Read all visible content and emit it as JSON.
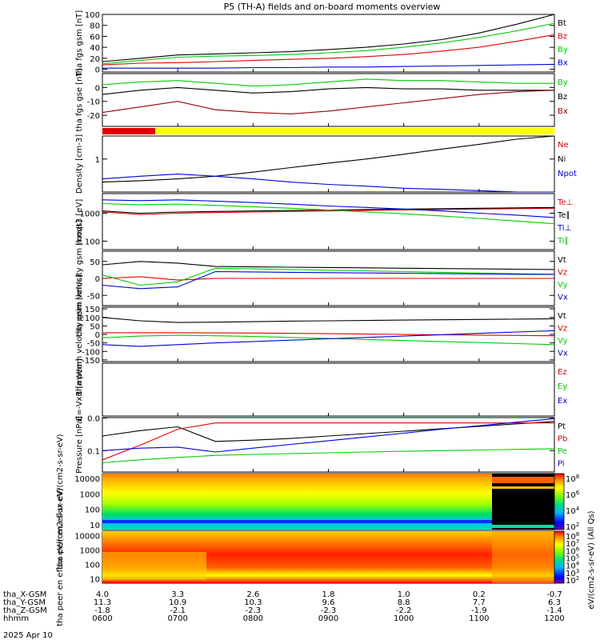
{
  "title": "P5 (TH-A) fields and on-board moments overview",
  "date": "2025 Apr 10",
  "colors": {
    "black": "#000000",
    "red": "#e00000",
    "green": "#00cc00",
    "blue": "#0000dd",
    "yellow": "#ffff00",
    "darkred": "#990000"
  },
  "xaxis": {
    "rows": [
      {
        "label": "tha_X-GSM",
        "values": [
          "4.0",
          "3.3",
          "2.6",
          "1.8",
          "1.0",
          "0.2",
          "-0.7"
        ]
      },
      {
        "label": "tha_Y-GSM",
        "values": [
          "11.3",
          "10.9",
          "10.3",
          "9.6",
          "8.8",
          "7.7",
          "6.3"
        ]
      },
      {
        "label": "tha_Z-GSM",
        "values": [
          "-1.8",
          "-2.1",
          "-2.3",
          "-2.3",
          "-2.2",
          "-1.9",
          "-1.4"
        ]
      },
      {
        "label": "hhmm",
        "values": [
          "0600",
          "0700",
          "0800",
          "0900",
          "1000",
          "1100",
          "1200"
        ]
      }
    ]
  },
  "chart_data": [
    {
      "type": "line",
      "ylabel": "tha fgs gsm [nT]",
      "ylim": [
        -5,
        100
      ],
      "yticks": [
        "100",
        "80",
        "60",
        "40",
        "20",
        "0"
      ],
      "x": [
        6.0,
        6.5,
        7.0,
        7.5,
        8.0,
        8.5,
        9.0,
        9.5,
        10.0,
        10.5,
        11.0,
        11.5,
        12.0
      ],
      "series": [
        {
          "name": "Bt",
          "color": "black",
          "values": [
            14,
            20,
            26,
            28,
            30,
            32,
            36,
            40,
            46,
            54,
            66,
            82,
            102
          ]
        },
        {
          "name": "Bz",
          "color": "red",
          "values": [
            8,
            11,
            12,
            14,
            16,
            18,
            20,
            23,
            27,
            33,
            40,
            51,
            63
          ]
        },
        {
          "name": "By",
          "color": "green",
          "values": [
            10,
            16,
            22,
            24,
            25,
            27,
            30,
            34,
            40,
            48,
            58,
            70,
            84
          ]
        },
        {
          "name": "Bx",
          "color": "blue",
          "values": [
            2,
            2,
            2,
            2,
            3,
            3,
            4,
            4,
            5,
            6,
            7,
            8,
            9
          ]
        }
      ]
    },
    {
      "type": "line",
      "ylabel": "tha fgs gse [nT]",
      "ylim": [
        -28,
        10
      ],
      "yticks": [
        "0",
        "-10",
        "-20"
      ],
      "x": [
        6.0,
        6.5,
        7.0,
        7.5,
        8.0,
        8.5,
        9.0,
        9.5,
        10.0,
        10.5,
        11.0,
        11.5,
        12.0
      ],
      "series": [
        {
          "name": "By",
          "color": "green",
          "values": [
            2,
            4,
            5,
            3,
            1,
            2,
            4,
            6,
            5,
            5,
            4,
            3,
            3
          ]
        },
        {
          "name": "Bz",
          "color": "black",
          "values": [
            -5,
            -2,
            0,
            -2,
            -4,
            -3,
            -1,
            0,
            -1,
            -1,
            -2,
            -2,
            -2
          ]
        },
        {
          "name": "Bx",
          "color": "darkred",
          "values": [
            -18,
            -14,
            -10,
            -16,
            -18,
            -19,
            -17,
            -14,
            -11,
            -8,
            -5,
            -3,
            -2
          ]
        }
      ]
    },
    {
      "type": "line",
      "ylabel": "Density [cm-3]",
      "ylim": [
        0.1,
        5
      ],
      "yticks": [
        "1"
      ],
      "x": [
        6.0,
        6.5,
        7.0,
        7.5,
        8.0,
        8.5,
        9.0,
        9.5,
        10.0,
        10.5,
        11.0,
        11.5,
        12.0
      ],
      "series": [
        {
          "name": "Ne",
          "color": "red",
          "values": [
            null,
            null,
            null,
            null,
            null,
            null,
            null,
            null,
            null,
            null,
            null,
            null,
            null
          ]
        },
        {
          "name": "Ni",
          "color": "black",
          "values": [
            0.2,
            0.22,
            0.25,
            0.3,
            0.4,
            0.55,
            0.75,
            1.0,
            1.4,
            2.0,
            2.8,
            4.0,
            5.0
          ]
        },
        {
          "name": "Npot",
          "color": "blue",
          "values": [
            0.25,
            0.3,
            0.35,
            0.3,
            0.25,
            0.2,
            0.17,
            0.15,
            0.13,
            0.12,
            0.11,
            0.1,
            0.1
          ]
        }
      ]
    },
    {
      "type": "line",
      "ylabel": "moqt3 [eV]",
      "ylim": [
        50,
        5000
      ],
      "yticks": [
        "1000",
        "100"
      ],
      "x": [
        6.0,
        6.5,
        7.0,
        7.5,
        8.0,
        8.5,
        9.0,
        9.5,
        10.0,
        10.5,
        11.0,
        11.5,
        12.0
      ],
      "series": [
        {
          "name": "Te⊥",
          "color": "red",
          "values": [
            1100,
            900,
            1000,
            1050,
            1100,
            1150,
            1200,
            1250,
            1300,
            1350,
            1400,
            1450,
            1500
          ]
        },
        {
          "name": "Te∥",
          "color": "black",
          "values": [
            1200,
            1000,
            1100,
            1150,
            1200,
            1250,
            1300,
            1350,
            1400,
            1450,
            1500,
            1550,
            1600
          ]
        },
        {
          "name": "Ti⊥",
          "color": "blue",
          "values": [
            3000,
            2800,
            3000,
            2700,
            2400,
            2100,
            1800,
            1600,
            1400,
            1200,
            1000,
            850,
            700
          ]
        },
        {
          "name": "Ti∥",
          "color": "green",
          "values": [
            2200,
            2000,
            2100,
            1900,
            1700,
            1500,
            1300,
            1100,
            950,
            800,
            650,
            520,
            420
          ]
        }
      ]
    },
    {
      "type": "line",
      "ylabel": "tha peim velocity gsm [km/s]",
      "ylim": [
        -80,
        80
      ],
      "yticks": [
        "50",
        "0",
        "-50"
      ],
      "x": [
        6.0,
        6.5,
        7.0,
        7.5,
        8.0,
        8.5,
        9.0,
        9.5,
        10.0,
        10.5,
        11.0,
        11.5,
        12.0
      ],
      "series": [
        {
          "name": "Vt",
          "color": "black",
          "values": [
            40,
            50,
            45,
            35,
            34,
            33,
            32,
            31,
            30,
            29,
            28,
            27,
            26
          ]
        },
        {
          "name": "Vz",
          "color": "red",
          "values": [
            0,
            5,
            -5,
            0,
            0,
            0,
            0,
            0,
            0,
            0,
            0,
            0,
            0
          ]
        },
        {
          "name": "Vy",
          "color": "green",
          "values": [
            10,
            -20,
            -10,
            30,
            28,
            26,
            24,
            22,
            20,
            18,
            16,
            14,
            12
          ]
        },
        {
          "name": "Vx",
          "color": "blue",
          "values": [
            -20,
            -30,
            -25,
            20,
            19,
            18,
            17,
            16,
            15,
            14,
            13,
            12,
            12
          ]
        }
      ]
    },
    {
      "type": "line",
      "ylabel": "tha peem velocity gsm [km/s]",
      "ylim": [
        -160,
        160
      ],
      "yticks": [
        "150",
        "100",
        "50",
        "0",
        "-50",
        "-100",
        "-150"
      ],
      "x": [
        6.0,
        6.5,
        7.0,
        7.5,
        8.0,
        8.5,
        9.0,
        9.5,
        10.0,
        10.5,
        11.0,
        11.5,
        12.0
      ],
      "series": [
        {
          "name": "Vt",
          "color": "black",
          "values": [
            100,
            80,
            70,
            72,
            75,
            78,
            80,
            82,
            84,
            86,
            88,
            90,
            92
          ]
        },
        {
          "name": "Vz",
          "color": "red",
          "values": [
            10,
            10,
            10,
            9,
            8,
            6,
            4,
            2,
            0,
            -2,
            -4,
            -6,
            -8
          ]
        },
        {
          "name": "Vy",
          "color": "green",
          "values": [
            -20,
            -10,
            -5,
            -8,
            -12,
            -18,
            -24,
            -30,
            -36,
            -42,
            -48,
            -54,
            -60
          ]
        },
        {
          "name": "Vx",
          "color": "blue",
          "values": [
            -60,
            -70,
            -60,
            -50,
            -42,
            -34,
            -26,
            -18,
            -10,
            -2,
            6,
            14,
            22
          ]
        }
      ]
    },
    {
      "type": "line",
      "ylabel": "E=-VxB [mV/m]",
      "ylim": [
        -1,
        1
      ],
      "yticks": [],
      "x": [
        6,
        12
      ],
      "series": [
        {
          "name": "Ez",
          "color": "red",
          "values": [
            null,
            null
          ]
        },
        {
          "name": "Ey",
          "color": "green",
          "values": [
            null,
            null
          ]
        },
        {
          "name": "Ex",
          "color": "blue",
          "values": [
            null,
            null
          ]
        }
      ]
    },
    {
      "type": "line",
      "ylabel": "Pressure [nPa]",
      "ylim": [
        0.02,
        1.2
      ],
      "yticks": [
        "0.0",
        "0.1"
      ],
      "x": [
        6.0,
        6.5,
        7.0,
        7.5,
        8.0,
        8.5,
        9.0,
        9.5,
        10.0,
        10.5,
        11.0,
        11.5,
        12.0
      ],
      "series": [
        {
          "name": "Pt",
          "color": "black",
          "values": [
            0.3,
            0.45,
            0.6,
            0.2,
            0.22,
            0.25,
            0.3,
            0.36,
            0.43,
            0.52,
            0.62,
            0.75,
            0.9
          ]
        },
        {
          "name": "Pb",
          "color": "red",
          "values": [
            0.05,
            0.15,
            0.5,
            0.8,
            0.8,
            0.8,
            0.8,
            0.8,
            0.8,
            0.8,
            0.8,
            0.8,
            0.8
          ]
        },
        {
          "name": "Pe",
          "color": "green",
          "values": [
            0.04,
            0.05,
            0.06,
            0.07,
            0.075,
            0.08,
            0.085,
            0.09,
            0.095,
            0.1,
            0.105,
            0.11,
            0.115
          ]
        },
        {
          "name": "Pi",
          "color": "blue",
          "values": [
            0.1,
            0.12,
            0.13,
            0.09,
            0.12,
            0.16,
            0.21,
            0.28,
            0.37,
            0.5,
            0.65,
            0.85,
            1.1
          ]
        }
      ]
    },
    {
      "type": "heatmap",
      "ylabel": "tha peir en eflux eV/(cm2-s-sr-eV)",
      "ylim": [
        5,
        20000
      ],
      "yticks": [
        "10000",
        "1000",
        "100",
        "10"
      ],
      "colorbar": {
        "label": "eV/(cm2-s-sr-eV) (All Qs)",
        "ticks": [
          "10^8",
          "10^6",
          "10^4",
          "10^2"
        ]
      }
    },
    {
      "type": "heatmap",
      "ylabel": "tha peer en eflux eV/(cm2-s-sr-eV)",
      "ylim": [
        5,
        20000
      ],
      "yticks": [
        "10000",
        "1000",
        "100",
        "10"
      ],
      "colorbar": {
        "label": "eV/(cm2-s-sr-eV)",
        "ticks": [
          "10^8",
          "10^7",
          "10^6",
          "10^5",
          "10^4",
          "10^3",
          "10^2"
        ]
      }
    }
  ]
}
